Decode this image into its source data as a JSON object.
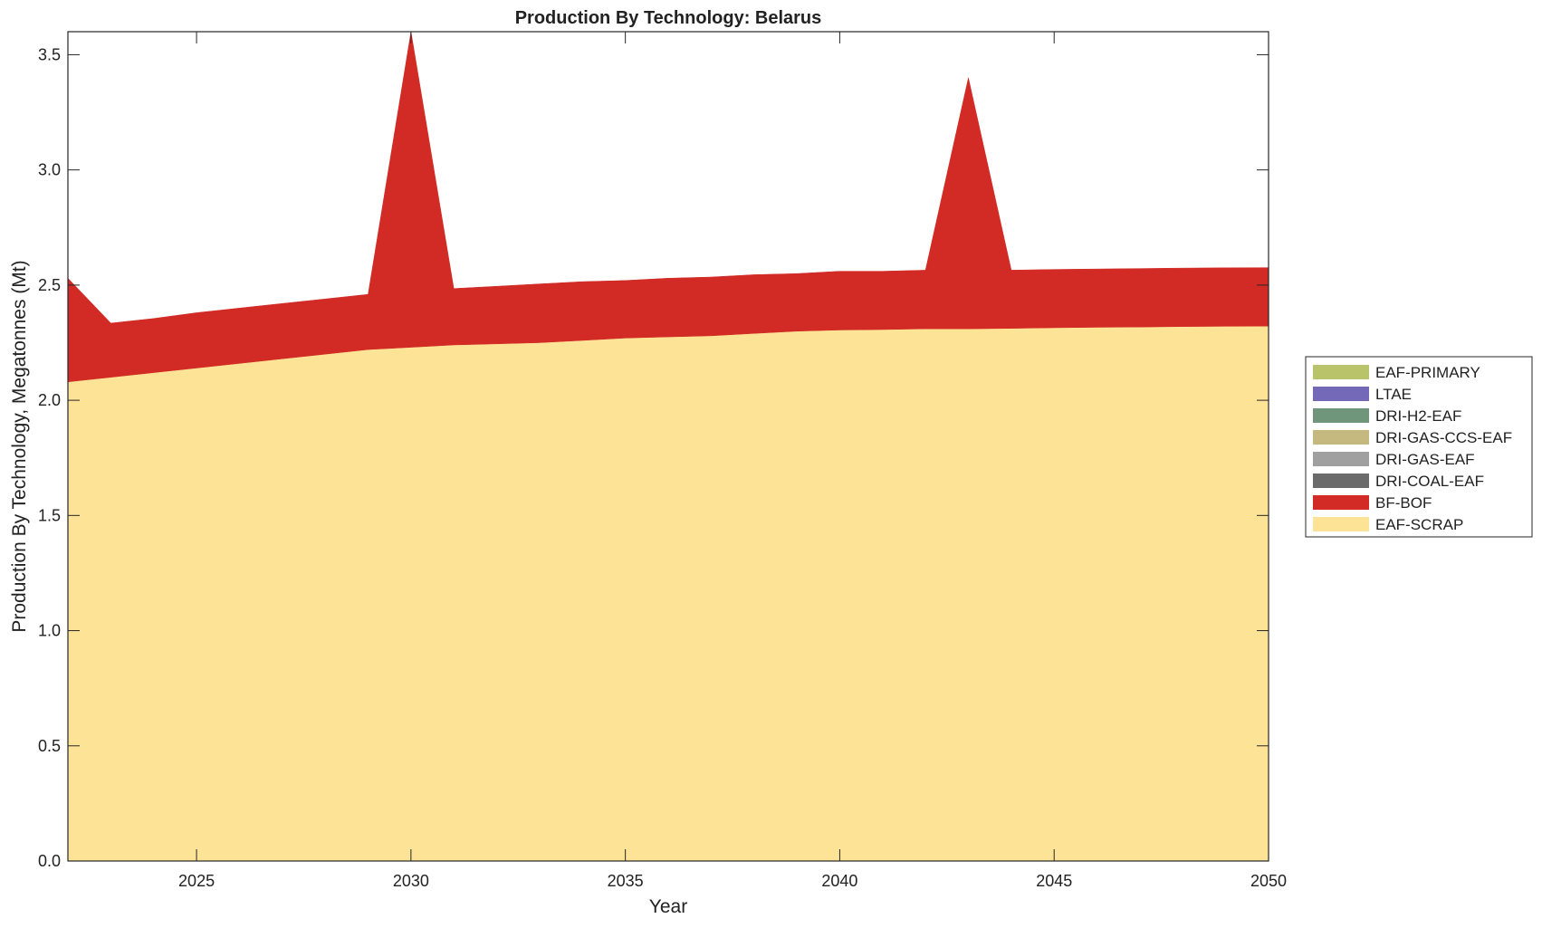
{
  "chart_data": {
    "type": "area",
    "stacked": true,
    "title": "Production By Technology: Belarus",
    "xlabel": "Year",
    "ylabel": "Production By Technology, Megatonnes (Mt)",
    "xlim": [
      2022,
      2050
    ],
    "ylim": [
      0,
      3.6
    ],
    "xticks": [
      2025,
      2030,
      2035,
      2040,
      2045,
      2050
    ],
    "yticks": [
      "0.0",
      "0.5",
      "1.0",
      "1.5",
      "2.0",
      "2.5",
      "3.0",
      "3.5"
    ],
    "grid": false,
    "legend_placement": "right",
    "x": [
      2022,
      2023,
      2024,
      2025,
      2026,
      2027,
      2028,
      2029,
      2030,
      2031,
      2032,
      2033,
      2034,
      2035,
      2036,
      2037,
      2038,
      2039,
      2040,
      2041,
      2042,
      2043,
      2044,
      2045,
      2046,
      2047,
      2048,
      2049,
      2050
    ],
    "series": [
      {
        "name": "EAF-SCRAP",
        "color": "#fde395",
        "values": [
          2.08,
          2.1,
          2.12,
          2.14,
          2.16,
          2.18,
          2.2,
          2.22,
          2.23,
          2.24,
          2.245,
          2.25,
          2.26,
          2.27,
          2.275,
          2.28,
          2.29,
          2.3,
          2.305,
          2.307,
          2.31,
          2.31,
          2.312,
          2.315,
          2.317,
          2.318,
          2.32,
          2.321,
          2.322
        ]
      },
      {
        "name": "BF-BOF",
        "color": "#d22b25",
        "values": [
          0.45,
          0.235,
          0.235,
          0.24,
          0.24,
          0.24,
          0.24,
          0.24,
          1.37,
          0.245,
          0.25,
          0.255,
          0.255,
          0.25,
          0.255,
          0.255,
          0.255,
          0.25,
          0.255,
          0.253,
          0.255,
          1.09,
          0.253,
          0.253,
          0.253,
          0.254,
          0.254,
          0.254,
          0.254
        ]
      },
      {
        "name": "DRI-COAL-EAF",
        "color": "#6b6b6b",
        "values": [
          0,
          0,
          0,
          0,
          0,
          0,
          0,
          0,
          0,
          0,
          0,
          0,
          0,
          0,
          0,
          0,
          0,
          0,
          0,
          0,
          0,
          0,
          0,
          0,
          0,
          0,
          0,
          0,
          0
        ]
      },
      {
        "name": "DRI-GAS-EAF",
        "color": "#a0a0a0",
        "values": [
          0,
          0,
          0,
          0,
          0,
          0,
          0,
          0,
          0,
          0,
          0,
          0,
          0,
          0,
          0,
          0,
          0,
          0,
          0,
          0,
          0,
          0,
          0,
          0,
          0,
          0,
          0,
          0,
          0
        ]
      },
      {
        "name": "DRI-GAS-CCS-EAF",
        "color": "#c6b97f",
        "values": [
          0,
          0,
          0,
          0,
          0,
          0,
          0,
          0,
          0,
          0,
          0,
          0,
          0,
          0,
          0,
          0,
          0,
          0,
          0,
          0,
          0,
          0,
          0,
          0,
          0,
          0,
          0,
          0,
          0
        ]
      },
      {
        "name": "DRI-H2-EAF",
        "color": "#6f967a",
        "values": [
          0,
          0,
          0,
          0,
          0,
          0,
          0,
          0,
          0,
          0,
          0,
          0,
          0,
          0,
          0,
          0,
          0,
          0,
          0,
          0,
          0,
          0,
          0,
          0,
          0,
          0,
          0,
          0,
          0
        ]
      },
      {
        "name": "LTAE",
        "color": "#7468b8",
        "values": [
          0,
          0,
          0,
          0,
          0,
          0,
          0,
          0,
          0,
          0,
          0,
          0,
          0,
          0,
          0,
          0,
          0,
          0,
          0,
          0,
          0,
          0,
          0,
          0,
          0,
          0,
          0,
          0,
          0
        ]
      },
      {
        "name": "EAF-PRIMARY",
        "color": "#b9c46a",
        "values": [
          0,
          0,
          0,
          0,
          0,
          0,
          0,
          0,
          0,
          0,
          0,
          0,
          0,
          0,
          0,
          0,
          0,
          0,
          0,
          0,
          0,
          0,
          0,
          0,
          0,
          0,
          0,
          0,
          0
        ]
      }
    ],
    "legend": [
      "EAF-PRIMARY",
      "LTAE",
      "DRI-H2-EAF",
      "DRI-GAS-CCS-EAF",
      "DRI-GAS-EAF",
      "DRI-COAL-EAF",
      "BF-BOF",
      "EAF-SCRAP"
    ]
  }
}
